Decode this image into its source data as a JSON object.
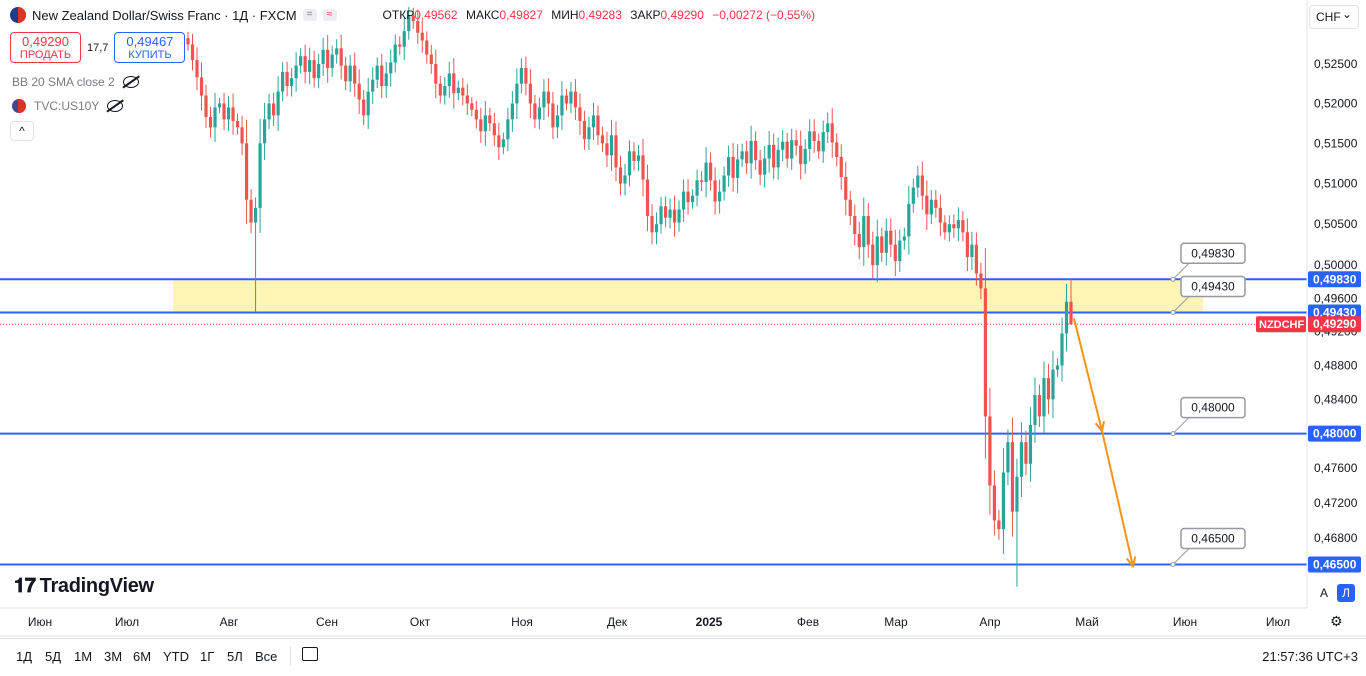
{
  "header": {
    "symbol_title": "New Zealand Dollar/Swiss Franc · 1Д · FXCM",
    "ohlc": [
      {
        "label": "ОТКР",
        "value": "0,49562"
      },
      {
        "label": "МАКС",
        "value": "0,49827"
      },
      {
        "label": "МИН",
        "value": "0,49283"
      },
      {
        "label": "ЗАКР",
        "value": "0,49290"
      },
      {
        "label": "",
        "value": "−0,00272 (−0,55%)"
      }
    ],
    "chip_eq": "=",
    "chip_wave": "≈"
  },
  "trade": {
    "sell_price": "0,49290",
    "sell_label": "ПРОДАТЬ",
    "spread": "17,7",
    "buy_price": "0,49467",
    "buy_label": "КУПИТЬ"
  },
  "indicators": [
    "BB 20 SMA close 2",
    "TVC:US10Y"
  ],
  "collapse_glyph": "^",
  "currency": "CHF",
  "logo_text": "TradingView",
  "scale_buttons": [
    "A",
    "Л"
  ],
  "timeframes": [
    "1Д",
    "5Д",
    "1М",
    "3М",
    "6М",
    "YTD",
    "1Г",
    "5Л",
    "Все"
  ],
  "clock": "21:57:36 UTC+3",
  "colors": {
    "up": "#26a69a",
    "down": "#ef5350",
    "level": "#2962ff",
    "zone": "#fff4b3",
    "arrow": "#f7931a",
    "label_red": "#f23645"
  },
  "chart_data": {
    "type": "candlestick",
    "y_ticks": [
      "0,52500",
      "0,52000",
      "0,51500",
      "0,51000",
      "0,50500",
      "0,50000",
      "0,49600",
      "0,49200",
      "0,48800",
      "0,48400",
      "0,47600",
      "0,47200",
      "0,46800"
    ],
    "y_tick_values": [
      0.525,
      0.52,
      0.515,
      0.51,
      0.505,
      0.5,
      0.496,
      0.492,
      0.488,
      0.484,
      0.476,
      0.472,
      0.468
    ],
    "x_ticks": [
      "Июн",
      "Июл",
      "Авг",
      "Сен",
      "Окт",
      "Ноя",
      "Дек",
      "2025",
      "Фев",
      "Мар",
      "Апр",
      "Май",
      "Июн",
      "Июл"
    ],
    "x_tick_bold": "2025",
    "levels": [
      {
        "value": 0.4983,
        "label": "0,49830"
      },
      {
        "value": 0.4943,
        "label": "0,49430"
      },
      {
        "value": 0.48,
        "label": "0,48000"
      },
      {
        "value": 0.465,
        "label": "0,46500"
      }
    ],
    "current_price": {
      "value": 0.4929,
      "label": "0,49290",
      "symbol": "NZDCHF"
    },
    "zone": {
      "top": 0.4983,
      "bottom": 0.4943
    },
    "projection_path": [
      0.4936,
      0.4803,
      0.4648
    ],
    "closes": [
      0.5275,
      0.5255,
      0.5233,
      0.521,
      0.5183,
      0.517,
      0.5195,
      0.52,
      0.518,
      0.5195,
      0.5178,
      0.517,
      0.515,
      0.508,
      0.5052,
      0.507,
      0.515,
      0.518,
      0.52,
      0.5185,
      0.5215,
      0.524,
      0.5222,
      0.5232,
      0.5248,
      0.526,
      0.524,
      0.5255,
      0.5232,
      0.525,
      0.5268,
      0.5245,
      0.5262,
      0.527,
      0.5248,
      0.5228,
      0.5248,
      0.5225,
      0.5205,
      0.5185,
      0.5215,
      0.523,
      0.5248,
      0.5222,
      0.5238,
      0.5252,
      0.5275,
      0.5272,
      0.5292,
      0.5312,
      0.5305,
      0.529,
      0.528,
      0.5262,
      0.525,
      0.5225,
      0.521,
      0.5222,
      0.5238,
      0.5213,
      0.522,
      0.521,
      0.52,
      0.5192,
      0.518,
      0.5165,
      0.5185,
      0.5175,
      0.516,
      0.5145,
      0.5155,
      0.518,
      0.52,
      0.5225,
      0.5245,
      0.5225,
      0.52,
      0.518,
      0.5195,
      0.5215,
      0.52,
      0.517,
      0.5185,
      0.521,
      0.52,
      0.5215,
      0.5195,
      0.5178,
      0.5155,
      0.517,
      0.5185,
      0.516,
      0.515,
      0.5135,
      0.516,
      0.512,
      0.51,
      0.511,
      0.514,
      0.5128,
      0.5135,
      0.5105,
      0.506,
      0.504,
      0.505,
      0.5072,
      0.5058,
      0.5068,
      0.5052,
      0.5068,
      0.509,
      0.5077,
      0.5085,
      0.5104,
      0.5102,
      0.5126,
      0.5104,
      0.5078,
      0.509,
      0.511,
      0.5133,
      0.5107,
      0.513,
      0.514,
      0.5125,
      0.5153,
      0.5129,
      0.5111,
      0.5131,
      0.5148,
      0.512,
      0.5142,
      0.5152,
      0.5131,
      0.5154,
      0.5147,
      0.5124,
      0.5143,
      0.5165,
      0.5153,
      0.514,
      0.5164,
      0.5175,
      0.5151,
      0.5133,
      0.5108,
      0.508,
      0.506,
      0.5038,
      0.5022,
      0.506,
      0.5025,
      0.5,
      0.5035,
      0.5015,
      0.5042,
      0.5025,
      0.5005,
      0.503,
      0.5035,
      0.5075,
      0.5095,
      0.511,
      0.5085,
      0.5062,
      0.508,
      0.507,
      0.5052,
      0.504,
      0.505,
      0.5045,
      0.5055,
      0.504,
      0.501,
      0.5025,
      0.499,
      0.4972,
      0.482,
      0.474,
      0.47,
      0.469,
      0.4755,
      0.479,
      0.471,
      0.475,
      0.479,
      0.4765,
      0.481,
      0.4845,
      0.482,
      0.4865,
      0.484,
      0.4875,
      0.488,
      0.4918,
      0.4956,
      0.4929
    ]
  }
}
